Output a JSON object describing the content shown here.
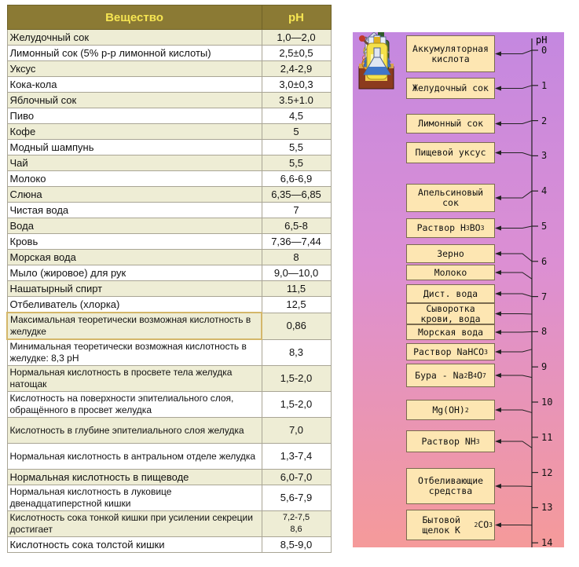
{
  "table": {
    "headers": [
      "Вещество",
      "pH"
    ],
    "rows": [
      {
        "name": "Желудочный сок",
        "value": "1,0—2,0"
      },
      {
        "name": "Лимонный сок (5% р-р лимонной кислоты)",
        "value": "2,5±0,5"
      },
      {
        "name": "Уксус",
        "value": "2,4-2,9"
      },
      {
        "name": "Кока-кола",
        "value": "3,0±0,3"
      },
      {
        "name": "Яблочный сок",
        "value": "3.5+1.0"
      },
      {
        "name": "Пиво",
        "value": "4,5"
      },
      {
        "name": "Кофе",
        "value": "5"
      },
      {
        "name": "Модный шампунь",
        "value": "5,5"
      },
      {
        "name": "Чай",
        "value": "5,5"
      },
      {
        "name": "Молоко",
        "value": "6,6-6,9"
      },
      {
        "name": "Слюна",
        "value": "6,35—6,85"
      },
      {
        "name": "Чистая вода",
        "value": "7"
      },
      {
        "name": "Вода",
        "value": "6,5-8"
      },
      {
        "name": "Кровь",
        "value": "7,36—7,44"
      },
      {
        "name": "Морская вода",
        "value": "8"
      },
      {
        "name": "Мыло (жировое) для рук",
        "value": "9,0—10,0"
      },
      {
        "name": "Нашатырный спирт",
        "value": "11,5"
      },
      {
        "name": "Отбеливатель (хлорка)",
        "value": "12,5"
      },
      {
        "name": "Максимальная теоретически возможная кислотность в желудке",
        "value": "0,86"
      },
      {
        "name": "Минимальная теоретически возможная кислотность в желудке: 8,3 pH",
        "value": "8,3"
      },
      {
        "name": "Нормальная кислотность в просвете тела желудка натощак",
        "value": "1,5-2,0"
      },
      {
        "name": "Кислотность на поверхности эпителиального слоя, обращённого в просвет желудка",
        "value": "1,5-2,0"
      },
      {
        "name": "Кислотность в глубине эпителиального слоя желудка",
        "value": "7,0"
      },
      {
        "name": "Нормальная кислотность в антральном отделе желудка",
        "value": "1,3-7,4"
      },
      {
        "name": "Нормальная кислотность в пищеводе",
        "value": "6,0-7,0"
      },
      {
        "name": "Нормальная кислотность в луковице двенадцатиперстной кишки",
        "value": "5,6-7,9"
      },
      {
        "name": "Кислотность сока тонкой кишки при усилении секреции достигает",
        "value_lines": [
          "7,2-7,5",
          "8,6"
        ]
      },
      {
        "name": "Кислотность сока толстой кишки",
        "value": "8,5-9,0"
      }
    ]
  },
  "scale": {
    "title": "pH",
    "ticks": [
      "0",
      "1",
      "2",
      "3",
      "4",
      "5",
      "6",
      "7",
      "8",
      "9",
      "10",
      "11",
      "12",
      "13",
      "14"
    ],
    "labels": [
      {
        "text": "Аккумуляторная кислота",
        "ph": 0
      },
      {
        "text": "Желудочный сок",
        "ph": 1
      },
      {
        "text": "Лимонный сок",
        "ph": 2
      },
      {
        "text": "Пищевой уксус",
        "ph": 3
      },
      {
        "text": "Апельсиновый сок",
        "ph": 4
      },
      {
        "text": "Раствор H3BO3",
        "ph": 5
      },
      {
        "text": "Зерно",
        "ph": 6
      },
      {
        "text": "Молоко",
        "ph": 6.5
      },
      {
        "text": "Дист. вода",
        "ph": 7
      },
      {
        "text": "Сыворотка крови, вода",
        "ph": 7.5
      },
      {
        "text": "Морская вода",
        "ph": 8
      },
      {
        "text": "Раствор NaHCO3",
        "ph": 8.5
      },
      {
        "text": "Бура - Na2B4O7",
        "ph": 9.3
      },
      {
        "text": "Mg(OH)2",
        "ph": 10.3
      },
      {
        "text": "Раствор NH3",
        "ph": 11.3
      },
      {
        "text": "Отбеливающие средства",
        "ph": 12.4
      },
      {
        "text": "Бытовой щелок K2CO3",
        "ph": 13.5
      }
    ],
    "icons": [
      "battery-icon",
      "stomach-icon",
      "lemon-icon",
      "vinegar-bottle-icon",
      "orange-icon",
      "flask-icon",
      "wheat-icon",
      "milk-carton-icon",
      "beaker-icon",
      "pipette-icon",
      "seashell-icon",
      "flask-icon",
      "flask-icon",
      "flask-icon",
      "flask-icon",
      "bleach-bottle-icon",
      "flask-icon"
    ]
  }
}
